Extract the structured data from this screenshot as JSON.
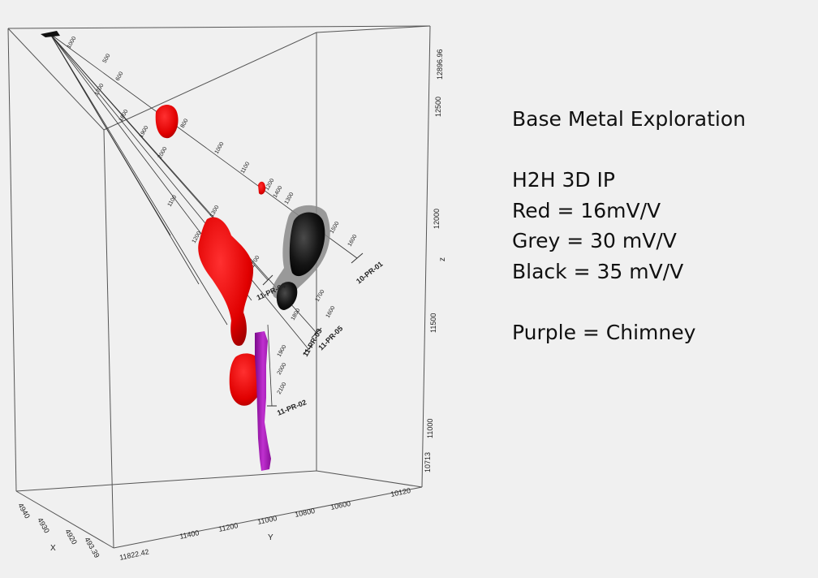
{
  "legend": {
    "title": "Base Metal Exploration",
    "survey": "H2H 3D IP",
    "red": "Red = 16mV/V",
    "grey": "Grey = 30 mV/V",
    "black": "Black = 35 mV/V",
    "purple": "Purple = Chimney"
  },
  "axes": {
    "z_label": "z",
    "z_ticks": [
      "12896.96",
      "12500",
      "12000",
      "11500",
      "11000",
      "10713"
    ],
    "y_label": "Y",
    "y_ticks": [
      "11822.42",
      "11400",
      "11200",
      "11000",
      "10800",
      "10600",
      "10120"
    ],
    "x_label": "X",
    "x_ticks": [
      "4940",
      "4930",
      "4920",
      "493.39"
    ]
  },
  "drillholes": [
    {
      "id": "10-PR-01",
      "depths": [
        "500",
        "600",
        "800",
        "1000",
        "1100",
        "1200",
        "1300",
        "1400",
        "1500",
        "1600",
        "1700",
        "1800",
        "1900",
        "2000"
      ]
    },
    {
      "id": "11-PR-02",
      "depths": [
        "1700",
        "1900",
        "2000",
        "2100"
      ]
    },
    {
      "id": "11-PR-03",
      "depths": [
        "1800",
        "1900",
        "2000"
      ]
    },
    {
      "id": "11-PR-04",
      "depths": [
        "1500",
        "1600",
        "1700"
      ]
    },
    {
      "id": "11-PR-05",
      "depths": [
        "1600",
        "1700",
        "1800"
      ]
    }
  ],
  "colors": {
    "red": "#ee0000",
    "grey": "#8a8a8a",
    "black": "#101010",
    "purple": "#a01ab0"
  }
}
